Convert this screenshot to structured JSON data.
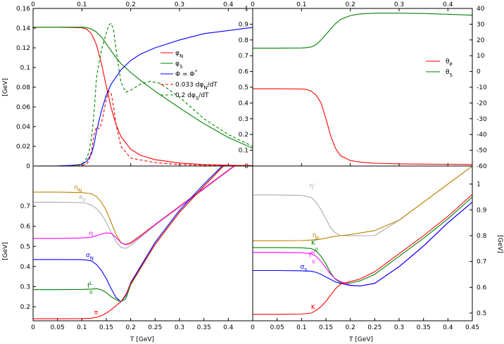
{
  "axis_labels": {
    "gev": "[GeV]",
    "t_gev": "T [GeV]"
  },
  "chart_data": [
    {
      "id": "top_left",
      "type": "line",
      "x_ticks": [
        "0",
        "0.1",
        "0.2",
        "0.3",
        "0.4"
      ],
      "xlim": [
        0,
        0.45
      ],
      "ylim_left": [
        0,
        0.16
      ],
      "y_ticks_left": [
        "0",
        "0.02",
        "0.04",
        "0.06",
        "0.08",
        "0.1",
        "0.12",
        "0.14",
        "0.16"
      ],
      "ylabel_left": "[GeV]",
      "ylim_right": [
        0,
        1.0
      ],
      "y_ticks_right": [
        "0",
        "0.1",
        "0.2",
        "0.3",
        "0.4",
        "0.5",
        "0.6",
        "0.7",
        "0.8",
        "0.9",
        "1"
      ],
      "legend_position": "right",
      "series": [
        {
          "name": "φN",
          "sub": "N",
          "base": "φ",
          "sup": "",
          "color": "#ff0000",
          "dash": false,
          "axis": "left",
          "x": [
            0,
            0.05,
            0.1,
            0.11,
            0.12,
            0.13,
            0.14,
            0.15,
            0.16,
            0.17,
            0.18,
            0.2,
            0.22,
            0.25,
            0.3,
            0.35,
            0.4,
            0.45
          ],
          "y": [
            0.141,
            0.141,
            0.1405,
            0.139,
            0.134,
            0.123,
            0.104,
            0.081,
            0.059,
            0.042,
            0.03,
            0.017,
            0.011,
            0.0065,
            0.003,
            0.0015,
            0.0008,
            0.0004
          ]
        },
        {
          "name": "φS",
          "sub": "S",
          "base": "φ",
          "sup": "",
          "color": "#008000",
          "dash": false,
          "axis": "left",
          "x": [
            0,
            0.05,
            0.1,
            0.11,
            0.12,
            0.13,
            0.14,
            0.15,
            0.16,
            0.17,
            0.18,
            0.2,
            0.22,
            0.25,
            0.3,
            0.35,
            0.4,
            0.45
          ],
          "y": [
            0.141,
            0.141,
            0.141,
            0.1405,
            0.139,
            0.136,
            0.131,
            0.124,
            0.117,
            0.11,
            0.104,
            0.095,
            0.087,
            0.076,
            0.059,
            0.043,
            0.029,
            0.018
          ]
        },
        {
          "name": "Φ = Φ*",
          "sub": "",
          "base": "Φ = Φ",
          "sup": "*",
          "color": "#0000ff",
          "dash": false,
          "axis": "right",
          "x": [
            0,
            0.05,
            0.08,
            0.1,
            0.11,
            0.12,
            0.125,
            0.13,
            0.14,
            0.15,
            0.16,
            0.18,
            0.2,
            0.22,
            0.25,
            0.3,
            0.35,
            0.4,
            0.45
          ],
          "y": [
            0,
            0.001,
            0.004,
            0.012,
            0.03,
            0.08,
            0.14,
            0.22,
            0.35,
            0.45,
            0.52,
            0.61,
            0.67,
            0.71,
            0.75,
            0.8,
            0.84,
            0.86,
            0.88
          ]
        },
        {
          "name": "0.033 dφN/dT",
          "sub": "N",
          "base": "0.033 dφ",
          "sup": "",
          "tail": "/dT",
          "color": "#ff0000",
          "dash": true,
          "axis": "left",
          "x": [
            0,
            0.08,
            0.1,
            0.11,
            0.115,
            0.12,
            0.125,
            0.13,
            0.135,
            0.14,
            0.145,
            0.15,
            0.155,
            0.16,
            0.165,
            0.17,
            0.18,
            0.2,
            0.25,
            0.3,
            0.35,
            0.4,
            0.45
          ],
          "y": [
            0,
            0,
            0.0005,
            0.002,
            0.006,
            0.016,
            0.032,
            0.04,
            0.038,
            0.043,
            0.055,
            0.068,
            0.076,
            0.074,
            0.06,
            0.042,
            0.02,
            0.008,
            0.0035,
            0.0015,
            0.0008,
            0.0004,
            0.0002
          ]
        },
        {
          "name": "0.2 dφS/dT",
          "sub": "S",
          "base": "0.2 dφ",
          "sup": "",
          "tail": "/dT",
          "color": "#008000",
          "dash": true,
          "axis": "left",
          "x": [
            0,
            0.08,
            0.1,
            0.11,
            0.115,
            0.12,
            0.125,
            0.13,
            0.14,
            0.15,
            0.155,
            0.16,
            0.165,
            0.17,
            0.18,
            0.19,
            0.2,
            0.22,
            0.24,
            0.26,
            0.3,
            0.35,
            0.4,
            0.45
          ],
          "y": [
            0,
            0,
            0.002,
            0.008,
            0.015,
            0.03,
            0.055,
            0.09,
            0.118,
            0.135,
            0.143,
            0.145,
            0.138,
            0.118,
            0.085,
            0.075,
            0.077,
            0.083,
            0.086,
            0.084,
            0.07,
            0.048,
            0.032,
            0.02
          ]
        }
      ]
    },
    {
      "id": "top_right",
      "type": "line",
      "x_ticks": [
        "0",
        "0.1",
        "0.2",
        "0.3",
        "0.4"
      ],
      "xlim": [
        0,
        0.45
      ],
      "ylim_right": [
        -60,
        40
      ],
      "y_ticks_right": [
        "-60",
        "-50",
        "-40",
        "-30",
        "-20",
        "-10",
        "0",
        "10",
        "20",
        "30",
        "40"
      ],
      "legend_position": "right",
      "series": [
        {
          "name": "θP",
          "sub": "P",
          "base": "θ",
          "sup": "",
          "color": "#ff0000",
          "dash": false,
          "x": [
            0,
            0.05,
            0.1,
            0.11,
            0.12,
            0.13,
            0.14,
            0.15,
            0.16,
            0.17,
            0.18,
            0.2,
            0.22,
            0.25,
            0.3,
            0.35,
            0.4,
            0.45
          ],
          "y": [
            -11,
            -11,
            -11.1,
            -11.4,
            -12.5,
            -15,
            -20,
            -30,
            -41,
            -49,
            -53.5,
            -56.5,
            -57.5,
            -58.2,
            -58.6,
            -58.8,
            -58.9,
            -59
          ]
        },
        {
          "name": "θS",
          "sub": "S",
          "base": "θ",
          "sup": "",
          "color": "#008000",
          "dash": false,
          "x": [
            0,
            0.05,
            0.1,
            0.11,
            0.12,
            0.13,
            0.14,
            0.15,
            0.16,
            0.17,
            0.18,
            0.2,
            0.22,
            0.25,
            0.3,
            0.35,
            0.4,
            0.45
          ],
          "y": [
            14.8,
            14.8,
            14.9,
            15.1,
            15.6,
            17,
            20,
            23.5,
            27,
            30.5,
            33,
            35.5,
            36.5,
            37,
            37,
            36.8,
            36.3,
            35.7
          ]
        }
      ]
    },
    {
      "id": "bottom_left",
      "type": "line",
      "xlabel": "T [GeV]",
      "x_ticks": [
        "0",
        "0.05",
        "0.1",
        "0.15",
        "0.2",
        "0.25",
        "0.3",
        "0.35",
        "0.4"
      ],
      "xlim": [
        0,
        0.45
      ],
      "ylabel_left": "[GeV]",
      "ylim_left": [
        0.13,
        0.9
      ],
      "y_ticks_left": [
        "0.2",
        "0.3",
        "0.4",
        "0.5",
        "0.6",
        "0.7"
      ],
      "series": [
        {
          "name": "ηN",
          "sub": "N",
          "base": "η",
          "sup": "",
          "color": "#c08000",
          "label_pos": [
            0.1,
            0.785
          ],
          "x": [
            0,
            0.05,
            0.1,
            0.12,
            0.13,
            0.14,
            0.15,
            0.16,
            0.17,
            0.18,
            0.19,
            0.2,
            0.22,
            0.25,
            0.3,
            0.35,
            0.4,
            0.45
          ],
          "y": [
            0.77,
            0.77,
            0.768,
            0.762,
            0.748,
            0.72,
            0.678,
            0.62,
            0.56,
            0.52,
            0.51,
            0.52,
            0.555,
            0.61,
            0.7,
            0.79,
            0.88,
            0.97
          ]
        },
        {
          "name": "a0",
          "sub": "0",
          "base": "a",
          "sup": "",
          "color": "#aaaaaa",
          "label_pos": [
            0.108,
            0.737
          ],
          "x": [
            0,
            0.05,
            0.1,
            0.11,
            0.12,
            0.13,
            0.14,
            0.15,
            0.16,
            0.17,
            0.18,
            0.19,
            0.2,
            0.22,
            0.25,
            0.3,
            0.35,
            0.4,
            0.45
          ],
          "y": [
            0.72,
            0.72,
            0.718,
            0.714,
            0.705,
            0.688,
            0.66,
            0.62,
            0.57,
            0.525,
            0.495,
            0.49,
            0.505,
            0.545,
            0.605,
            0.695,
            0.785,
            0.875,
            0.965
          ]
        },
        {
          "name": "η",
          "sub": "",
          "base": "η",
          "sup": "",
          "color": "#ff00ff",
          "label_pos": [
            0.123,
            0.555
          ],
          "x": [
            0,
            0.05,
            0.1,
            0.12,
            0.13,
            0.14,
            0.15,
            0.16,
            0.17,
            0.18,
            0.19,
            0.2,
            0.22,
            0.25,
            0.3,
            0.35,
            0.4,
            0.45
          ],
          "y": [
            0.54,
            0.54,
            0.542,
            0.546,
            0.553,
            0.562,
            0.568,
            0.565,
            0.545,
            0.518,
            0.508,
            0.515,
            0.55,
            0.608,
            0.698,
            0.788,
            0.878,
            0.968
          ]
        },
        {
          "name": "σN",
          "sub": "N",
          "base": "σ",
          "sup": "",
          "color": "#0000ff",
          "label_pos": [
            0.124,
            0.447
          ],
          "x": [
            0,
            0.05,
            0.1,
            0.11,
            0.12,
            0.13,
            0.14,
            0.15,
            0.16,
            0.17,
            0.18,
            0.19,
            0.2,
            0.25,
            0.3,
            0.35,
            0.4,
            0.45
          ],
          "y": [
            0.435,
            0.435,
            0.434,
            0.432,
            0.428,
            0.41,
            0.38,
            0.34,
            0.29,
            0.245,
            0.225,
            0.255,
            0.32,
            0.52,
            0.68,
            0.81,
            0.93,
            1.02
          ]
        },
        {
          "name": "f0L",
          "sub": "0",
          "base": "f",
          "sup": "L",
          "color": "#008000",
          "label_pos": [
            0.122,
            0.295
          ],
          "x": [
            0,
            0.05,
            0.1,
            0.12,
            0.13,
            0.14,
            0.15,
            0.16,
            0.17,
            0.18,
            0.19,
            0.2,
            0.25,
            0.3,
            0.35,
            0.4,
            0.45
          ],
          "y": [
            0.285,
            0.285,
            0.286,
            0.288,
            0.29,
            0.284,
            0.27,
            0.25,
            0.235,
            0.225,
            0.24,
            0.31,
            0.51,
            0.67,
            0.8,
            0.925,
            1.02
          ]
        },
        {
          "name": "π",
          "sub": "",
          "base": "π",
          "sup": "",
          "color": "#ff0000",
          "label_pos": [
            0.133,
            0.162
          ],
          "x": [
            0,
            0.05,
            0.1,
            0.12,
            0.13,
            0.14,
            0.15,
            0.16,
            0.17,
            0.18,
            0.19,
            0.2,
            0.25,
            0.3,
            0.35,
            0.4,
            0.45
          ],
          "y": [
            0.14,
            0.14,
            0.141,
            0.143,
            0.148,
            0.155,
            0.168,
            0.185,
            0.205,
            0.225,
            0.26,
            0.315,
            0.51,
            0.67,
            0.8,
            0.925,
            1.02
          ]
        }
      ]
    },
    {
      "id": "bottom_right",
      "type": "line",
      "xlabel": "T [GeV]",
      "x_ticks": [
        "0",
        "0.05",
        "0.1",
        "0.15",
        "0.2",
        "0.25",
        "0.3",
        "0.35",
        "0.4",
        "0.45"
      ],
      "xlim": [
        0,
        0.45
      ],
      "ylabel_right": "[GeV]",
      "ylim_right": [
        0.47,
        1.07
      ],
      "y_ticks_right": [
        "0.5",
        "0.6",
        "0.7",
        "0.8",
        "0.9",
        "1"
      ],
      "series": [
        {
          "name": "η'",
          "sub": "",
          "base": "η'",
          "sup": "",
          "color": "#aaaaaa",
          "label_pos": [
            0.128,
            0.985
          ],
          "x": [
            0,
            0.05,
            0.1,
            0.12,
            0.13,
            0.14,
            0.15,
            0.16,
            0.17,
            0.18,
            0.2,
            0.25,
            0.3,
            0.35,
            0.4,
            0.45
          ],
          "y": [
            0.958,
            0.958,
            0.956,
            0.948,
            0.93,
            0.9,
            0.865,
            0.83,
            0.81,
            0.8,
            0.8,
            0.8,
            0.86,
            0.93,
            1.0,
            1.07
          ]
        },
        {
          "name": "ηS",
          "sub": "S",
          "base": "η",
          "sup": "",
          "color": "#c08000",
          "label_pos": [
            0.137,
            0.794
          ],
          "x": [
            0,
            0.05,
            0.1,
            0.12,
            0.13,
            0.14,
            0.15,
            0.16,
            0.18,
            0.2,
            0.25,
            0.3,
            0.35,
            0.4,
            0.45
          ],
          "y": [
            0.78,
            0.78,
            0.781,
            0.783,
            0.785,
            0.787,
            0.79,
            0.795,
            0.8,
            0.804,
            0.82,
            0.86,
            0.93,
            1.0,
            1.07
          ]
        },
        {
          "name": "K0*",
          "sub": "0",
          "base": "K",
          "sup": "*",
          "color": "#008000",
          "label_pos": [
            0.134,
            0.765
          ],
          "x": [
            0,
            0.05,
            0.1,
            0.12,
            0.13,
            0.14,
            0.15,
            0.16,
            0.17,
            0.18,
            0.2,
            0.22,
            0.25,
            0.3,
            0.35,
            0.4,
            0.45
          ],
          "y": [
            0.754,
            0.754,
            0.753,
            0.75,
            0.74,
            0.72,
            0.69,
            0.655,
            0.63,
            0.618,
            0.616,
            0.625,
            0.65,
            0.72,
            0.79,
            0.865,
            0.95
          ]
        },
        {
          "name": "f0H",
          "sub": "0",
          "base": "f",
          "sup": "H",
          "color": "#ff00ff",
          "label_pos": [
            0.128,
            0.717
          ],
          "x": [
            0,
            0.05,
            0.1,
            0.12,
            0.13,
            0.14,
            0.15,
            0.16,
            0.17,
            0.18,
            0.2,
            0.22,
            0.25,
            0.3,
            0.35,
            0.4,
            0.45
          ],
          "y": [
            0.735,
            0.735,
            0.734,
            0.73,
            0.72,
            0.7,
            0.675,
            0.65,
            0.632,
            0.622,
            0.608,
            0.605,
            0.615,
            0.68,
            0.76,
            0.85,
            0.93
          ]
        },
        {
          "name": "σS",
          "sub": "S",
          "base": "σ",
          "sup": "",
          "color": "#0000ff",
          "label_pos": [
            0.112,
            0.672
          ],
          "x": [
            0,
            0.05,
            0.1,
            0.12,
            0.13,
            0.14,
            0.15,
            0.16,
            0.17,
            0.18,
            0.2,
            0.22,
            0.25,
            0.3,
            0.35,
            0.4,
            0.45
          ],
          "y": [
            0.665,
            0.665,
            0.664,
            0.662,
            0.658,
            0.65,
            0.64,
            0.63,
            0.62,
            0.615,
            0.607,
            0.605,
            0.615,
            0.68,
            0.76,
            0.85,
            0.93
          ]
        },
        {
          "name": "K",
          "sub": "",
          "base": "K",
          "sup": "",
          "color": "#ff0000",
          "label_pos": [
            0.128,
            0.515
          ],
          "x": [
            0,
            0.05,
            0.1,
            0.12,
            0.13,
            0.14,
            0.15,
            0.16,
            0.17,
            0.18,
            0.2,
            0.22,
            0.25,
            0.3,
            0.35,
            0.4,
            0.45
          ],
          "y": [
            0.495,
            0.495,
            0.496,
            0.5,
            0.51,
            0.525,
            0.545,
            0.57,
            0.595,
            0.612,
            0.622,
            0.632,
            0.66,
            0.73,
            0.8,
            0.875,
            0.96
          ]
        }
      ]
    }
  ]
}
